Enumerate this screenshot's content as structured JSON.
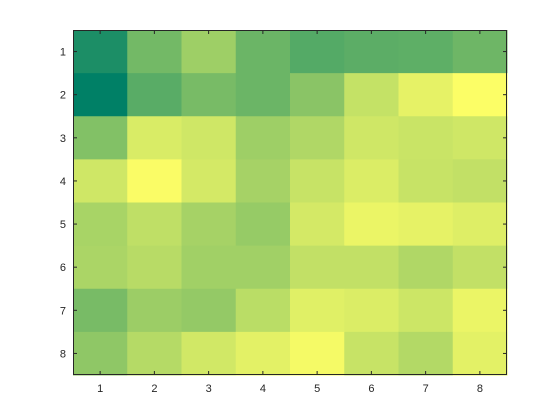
{
  "chart_data": {
    "type": "heatmap",
    "title": "",
    "xlabel": "",
    "ylabel": "",
    "colormap": "summer",
    "color_range": [
      0,
      1
    ],
    "x_categories": [
      "1",
      "2",
      "3",
      "4",
      "5",
      "6",
      "7",
      "8"
    ],
    "y_categories": [
      "1",
      "2",
      "3",
      "4",
      "5",
      "6",
      "7",
      "8"
    ],
    "values": [
      [
        0.11,
        0.45,
        0.62,
        0.42,
        0.33,
        0.36,
        0.37,
        0.43
      ],
      [
        0.0,
        0.35,
        0.47,
        0.42,
        0.54,
        0.77,
        0.9,
        0.99
      ],
      [
        0.51,
        0.85,
        0.81,
        0.62,
        0.69,
        0.81,
        0.79,
        0.81
      ],
      [
        0.81,
        0.98,
        0.83,
        0.65,
        0.78,
        0.86,
        0.78,
        0.76
      ],
      [
        0.66,
        0.75,
        0.65,
        0.59,
        0.83,
        0.92,
        0.9,
        0.87
      ],
      [
        0.67,
        0.72,
        0.63,
        0.63,
        0.76,
        0.76,
        0.69,
        0.76
      ],
      [
        0.47,
        0.61,
        0.58,
        0.73,
        0.88,
        0.86,
        0.8,
        0.92
      ],
      [
        0.56,
        0.71,
        0.82,
        0.89,
        0.96,
        0.78,
        0.7,
        0.89
      ]
    ],
    "grid": false,
    "colorbar": false
  }
}
